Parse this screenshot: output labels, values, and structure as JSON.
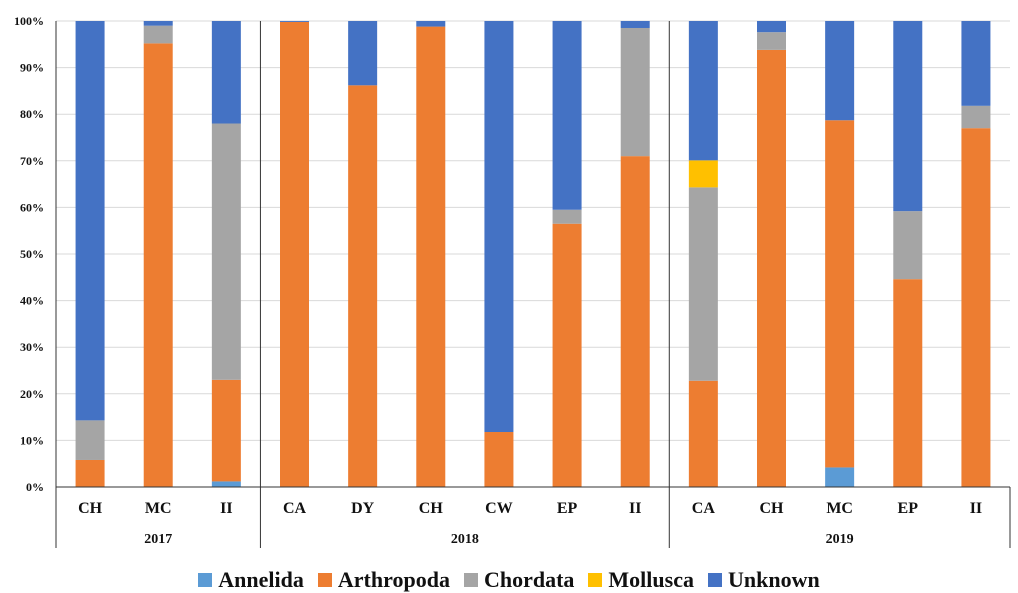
{
  "chart_data": {
    "type": "bar",
    "stacked": true,
    "percent": true,
    "ylim": [
      0,
      100
    ],
    "yticks": [
      "0%",
      "10%",
      "20%",
      "30%",
      "40%",
      "50%",
      "60%",
      "70%",
      "80%",
      "90%",
      "100%"
    ],
    "grid": true,
    "legend_position": "bottom",
    "groups": [
      {
        "label": "2017",
        "categories": [
          "CH",
          "MC",
          "II"
        ]
      },
      {
        "label": "2018",
        "categories": [
          "CA",
          "DY",
          "CH",
          "CW",
          "EP",
          "II"
        ]
      },
      {
        "label": "2019",
        "categories": [
          "CA",
          "CH",
          "MC",
          "EP",
          "II"
        ]
      }
    ],
    "categories": [
      "CH",
      "MC",
      "II",
      "CA",
      "DY",
      "CH",
      "CW",
      "EP",
      "II",
      "CA",
      "CH",
      "MC",
      "EP",
      "II"
    ],
    "series": [
      {
        "name": "Annelida",
        "color": "#5B9BD5",
        "values": [
          0,
          0,
          1.2,
          0,
          0,
          0,
          0,
          0,
          0,
          0,
          0,
          4.2,
          0,
          0
        ]
      },
      {
        "name": "Arthropoda",
        "color": "#ED7D31",
        "values": [
          5.8,
          95.2,
          21.8,
          99.8,
          86.2,
          98.8,
          11.8,
          56.5,
          71.0,
          22.8,
          93.8,
          74.5,
          44.6,
          77.0
        ]
      },
      {
        "name": "Chordata",
        "color": "#A5A5A5",
        "values": [
          8.5,
          3.8,
          55.0,
          0,
          0,
          0,
          0,
          3.0,
          27.5,
          41.5,
          3.8,
          0,
          14.6,
          4.8
        ]
      },
      {
        "name": "Mollusca",
        "color": "#FFC000",
        "values": [
          0,
          0,
          0,
          0,
          0,
          0,
          0,
          0,
          0,
          5.8,
          0,
          0,
          0,
          0
        ]
      },
      {
        "name": "Unknown",
        "color": "#4472C4",
        "values": [
          85.7,
          1.0,
          22.0,
          0.2,
          13.8,
          1.2,
          88.2,
          40.5,
          1.5,
          29.9,
          2.4,
          21.3,
          40.8,
          18.2
        ]
      }
    ]
  }
}
